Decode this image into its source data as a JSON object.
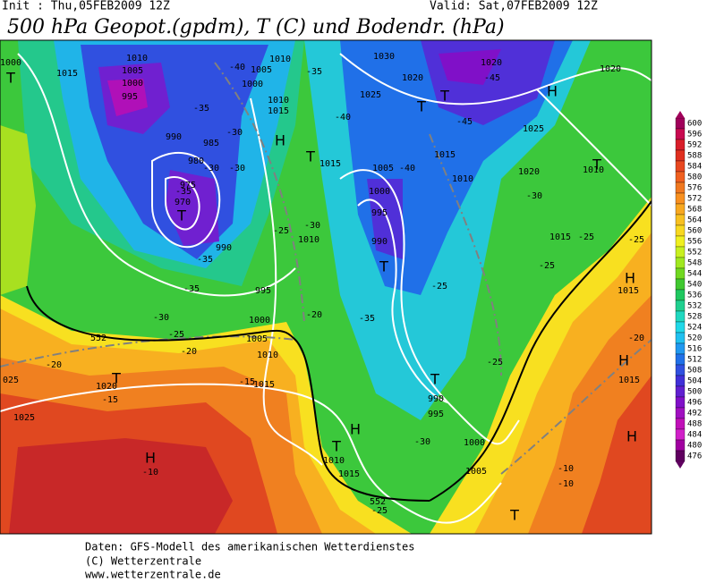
{
  "header": {
    "init": "Init : Thu,05FEB2009 12Z",
    "valid": "Valid: Sat,07FEB2009 12Z",
    "title": "500 hPa Geopot.(gpdm), T (C) und Bodendr. (hPa)"
  },
  "colorbar": {
    "labels": [
      "600",
      "596",
      "592",
      "588",
      "584",
      "580",
      "576",
      "572",
      "568",
      "564",
      "560",
      "556",
      "552",
      "548",
      "544",
      "540",
      "536",
      "532",
      "528",
      "524",
      "520",
      "516",
      "512",
      "508",
      "504",
      "500",
      "496",
      "492",
      "488",
      "484",
      "480",
      "476"
    ]
  },
  "map_labels": [
    "1000",
    "1015",
    "1010",
    "1005",
    "1000",
    "995",
    "-40",
    "1005",
    "1010",
    "-35",
    "1000",
    "1030",
    "1020",
    "-45",
    "1020",
    "1025",
    "1020",
    "1010",
    "1015",
    "-40",
    "-45",
    "-35",
    "990",
    "985",
    "-30",
    "1025",
    "980",
    "-30",
    "-30",
    "1015",
    "1005",
    "-40",
    "1015",
    "1010",
    "1020",
    "1010",
    "975",
    "970",
    "-35",
    "1000",
    "-30",
    "995",
    "-30",
    "-25",
    "1010",
    "990",
    "990",
    "1015",
    "-25",
    "-25",
    "-35",
    "-25",
    "995",
    "-35",
    "-25",
    "1015",
    "-30",
    "-20",
    "1000",
    "-35",
    "1005",
    "-25",
    "-20",
    "-20",
    "-20",
    "1010",
    "-15",
    "1015",
    "-25",
    "1015",
    "025",
    "1020",
    "-15",
    "990",
    "995",
    "1025",
    "-30",
    "1000",
    "-10",
    "1010",
    "1015",
    "1005",
    "-10",
    "-10",
    "-25",
    "552",
    "552"
  ],
  "centers": [
    "T",
    "T",
    "H",
    "T",
    "H",
    "T",
    "T",
    "T",
    "H",
    "H",
    "T",
    "T",
    "H",
    "T",
    "H",
    "H",
    "T",
    "T"
  ],
  "footer": {
    "lines": [
      "Daten: GFS-Modell des amerikanischen Wetterdienstes",
      "(C) Wetterzentrale",
      "www.wetterzentrale.de"
    ]
  }
}
